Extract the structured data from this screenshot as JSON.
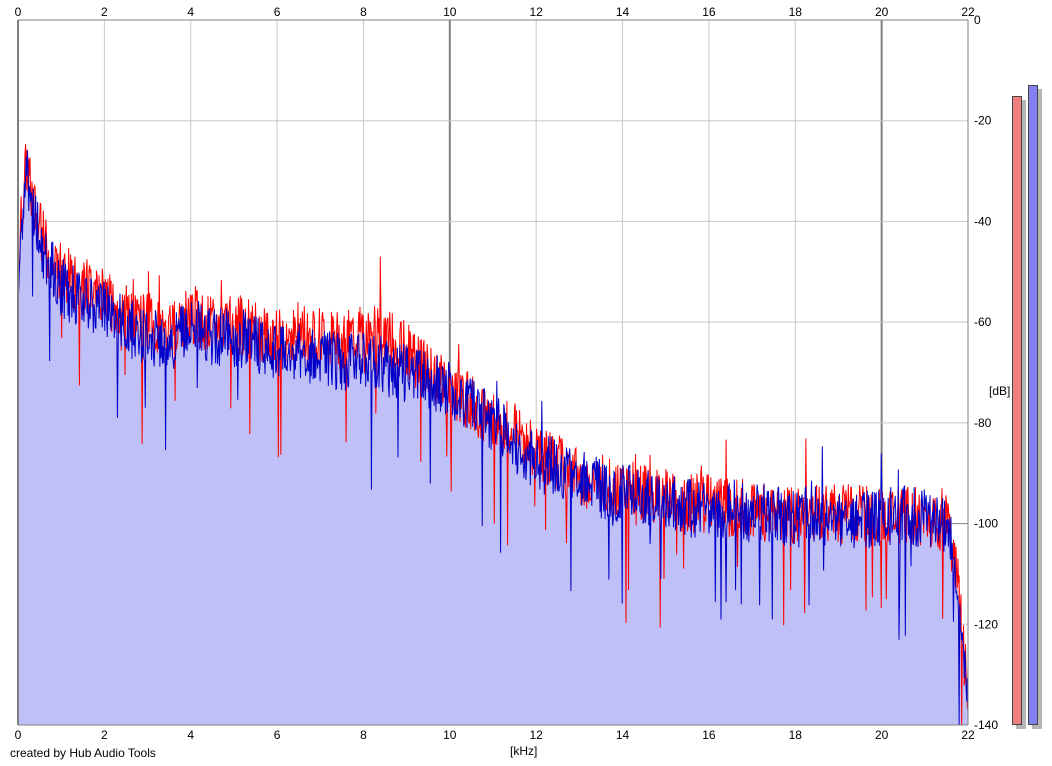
{
  "credit_text": "created by Hub Audio Tools",
  "colors": {
    "background": "#ffffff",
    "grid_light": "#c8c8c8",
    "grid_major": "#808080",
    "fill_blue": "#c0c0f8",
    "fill_red": "#f8c0c0",
    "line_red": "#ff0000",
    "line_blue": "#0000c8",
    "meter_left": "#f08080",
    "meter_right": "#8080f0"
  },
  "chart_data": {
    "type": "area",
    "title": "",
    "xlabel": "[kHz]",
    "ylabel": "[dB]",
    "xlim": [
      0,
      22
    ],
    "ylim": [
      -140,
      0
    ],
    "x_ticks": [
      0,
      2,
      4,
      6,
      8,
      10,
      12,
      14,
      16,
      18,
      20,
      22
    ],
    "y_ticks": [
      0,
      -20,
      -40,
      -60,
      -80,
      -100,
      -120,
      -140
    ],
    "grid": true,
    "series": [
      {
        "color": "#ff0000",
        "x": [
          0,
          0.1,
          0.2,
          0.3,
          0.5,
          0.7,
          1,
          1.5,
          2,
          2.5,
          3,
          3.5,
          4,
          4.5,
          5,
          5.5,
          6,
          6.5,
          7,
          7.5,
          8,
          8.5,
          9,
          9.5,
          10,
          10.5,
          11,
          11.5,
          12,
          12.5,
          13,
          13.5,
          14,
          14.5,
          15,
          15.5,
          16,
          16.5,
          17,
          17.5,
          18,
          18.5,
          19,
          19.5,
          20,
          20.5,
          21,
          21.5,
          21.7,
          21.8,
          21.9,
          22
        ],
        "values": [
          -50,
          -36,
          -28,
          -34,
          -42,
          -46,
          -50,
          -53,
          -55,
          -58,
          -60,
          -62,
          -58,
          -61,
          -60,
          -62,
          -63,
          -62,
          -63,
          -64,
          -62,
          -63,
          -66,
          -70,
          -73,
          -76,
          -79,
          -82,
          -86,
          -88,
          -91,
          -92,
          -93,
          -94,
          -95,
          -96,
          -96,
          -97,
          -97,
          -98,
          -98,
          -98,
          -98,
          -98,
          -99,
          -98,
          -99,
          -100,
          -106,
          -116,
          -126,
          -132
        ]
      },
      {
        "color": "#0000c8",
        "x": [
          0,
          0.1,
          0.2,
          0.3,
          0.5,
          0.7,
          1,
          1.5,
          2,
          2.5,
          3,
          3.5,
          4,
          4.5,
          5,
          5.5,
          6,
          6.5,
          7,
          7.5,
          8,
          8.5,
          9,
          9.5,
          10,
          10.5,
          11,
          11.5,
          12,
          12.5,
          13,
          13.5,
          14,
          14.5,
          15,
          15.5,
          16,
          16.5,
          17,
          17.5,
          18,
          18.5,
          19,
          19.5,
          20,
          20.5,
          21,
          21.5,
          21.7,
          21.8,
          21.9,
          22
        ],
        "values": [
          -52,
          -38,
          -30,
          -35,
          -44,
          -48,
          -53,
          -56,
          -58,
          -61,
          -63,
          -64,
          -61,
          -63,
          -63,
          -64,
          -66,
          -66,
          -67,
          -68,
          -68,
          -69,
          -70,
          -72,
          -73,
          -76,
          -80,
          -84,
          -88,
          -89,
          -91,
          -93,
          -94,
          -95,
          -96,
          -97,
          -97,
          -97,
          -98,
          -98,
          -99,
          -98,
          -99,
          -99,
          -99,
          -98,
          -99,
          -100,
          -106,
          -117,
          -127,
          -133
        ]
      }
    ],
    "meters": {
      "left_db": -15,
      "right_db": -13
    }
  }
}
